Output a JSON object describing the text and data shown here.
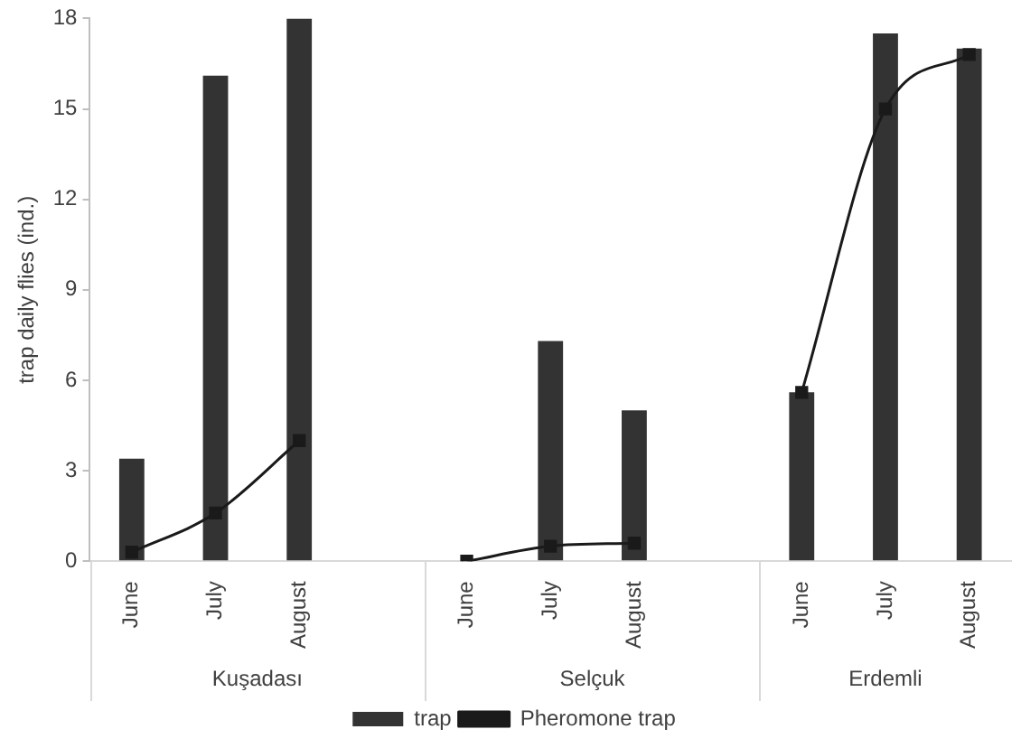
{
  "chart_data": {
    "type": "bar",
    "ylabel": "trap daily flies (ind.)",
    "categories": [
      "June",
      "July",
      "August",
      null,
      "June",
      "July",
      "August",
      null,
      "June",
      "July",
      "August"
    ],
    "series": [
      {
        "name": "trap",
        "color": "#333333",
        "values": [
          3.4,
          16.1,
          18,
          null,
          null,
          7.3,
          5.0,
          null,
          5.6,
          17.5,
          17.0
        ]
      },
      {
        "name": "Pheromone trap",
        "type": "line",
        "color": "#1a1a1a",
        "values": [
          0.3,
          1.6,
          4.0,
          null,
          0,
          0.5,
          0.6,
          null,
          5.6,
          15.0,
          16.8
        ]
      }
    ],
    "ylim": [
      0,
      18
    ],
    "yticks": [
      0,
      3,
      6,
      9,
      12,
      15,
      18
    ],
    "grid": false,
    "legend": "bottom",
    "marker": "square",
    "line_style": "solid",
    "annotations": [
      "Kuşadası",
      "Selçuk",
      "Erdemli"
    ]
  }
}
